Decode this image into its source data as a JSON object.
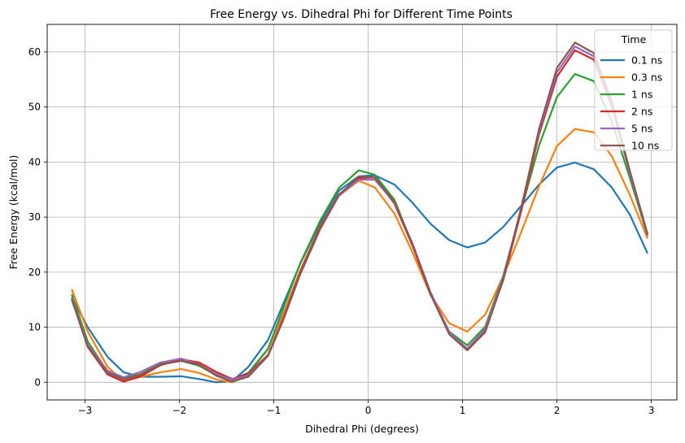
{
  "chart_data": {
    "type": "line",
    "title": "Free Energy vs. Dihedral Phi for Different Time Points",
    "xlabel": "Dihedral Phi (degrees)",
    "ylabel": "Free Energy (kcal/mol)",
    "xlim": [
      -3.4,
      3.27
    ],
    "ylim": [
      -3.2,
      65
    ],
    "xticks": [
      -3,
      -2,
      -1,
      0,
      1,
      2,
      3
    ],
    "xtick_labels": [
      "−3",
      "−2",
      "−1",
      "0",
      "1",
      "2",
      "3"
    ],
    "yticks": [
      0,
      10,
      20,
      30,
      40,
      50,
      60
    ],
    "ytick_labels": [
      "0",
      "10",
      "20",
      "30",
      "40",
      "50",
      "60"
    ],
    "grid": true,
    "legend": {
      "title": "Time",
      "position": "top-right"
    },
    "x": [
      -3.14,
      -2.97,
      -2.76,
      -2.59,
      -2.41,
      -2.2,
      -1.98,
      -1.79,
      -1.61,
      -1.44,
      -1.27,
      -1.06,
      -0.9,
      -0.72,
      -0.51,
      -0.31,
      -0.1,
      0.07,
      0.28,
      0.47,
      0.66,
      0.86,
      1.05,
      1.24,
      1.43,
      1.62,
      1.81,
      2.0,
      2.19,
      2.39,
      2.58,
      2.77,
      2.96
    ],
    "series": [
      {
        "name": "0.1 ns",
        "color": "#1f77b4",
        "values": [
          15.5,
          10,
          4.6,
          1.8,
          1.0,
          1.0,
          1.1,
          0.6,
          0,
          0.2,
          2.8,
          7.7,
          14.2,
          21.5,
          28.8,
          34.8,
          37.4,
          37.6,
          35.9,
          32.6,
          28.8,
          25.8,
          24.5,
          25.4,
          28.2,
          32.0,
          35.9,
          39.0,
          39.9,
          38.7,
          35.4,
          30.5,
          23.4
        ]
      },
      {
        "name": "0.3 ns",
        "color": "#ff7f0e",
        "values": [
          16.9,
          9.2,
          2.8,
          0.2,
          1.0,
          1.8,
          2.4,
          1.7,
          0.5,
          0,
          1.6,
          6.0,
          12.4,
          20.3,
          28.2,
          33.9,
          36.6,
          35.4,
          30.6,
          23.6,
          15.9,
          10.7,
          9.2,
          12.3,
          19.2,
          27.2,
          35.6,
          42.9,
          46.0,
          45.4,
          41.1,
          34.1,
          26.1
        ]
      },
      {
        "name": "1 ns",
        "color": "#2ca02c",
        "values": [
          16.0,
          7.4,
          1.9,
          0.8,
          1.5,
          3.3,
          3.9,
          3.0,
          1.3,
          0.5,
          1.7,
          6.1,
          13.4,
          21.6,
          29.3,
          35.3,
          38.5,
          37.7,
          33.1,
          24.9,
          16.1,
          9.2,
          6.7,
          10.1,
          19.3,
          31.2,
          43.0,
          51.8,
          56.0,
          54.7,
          47.4,
          37.2,
          26.6
        ]
      },
      {
        "name": "2 ns",
        "color": "#d62728",
        "values": [
          15.1,
          6.4,
          1.4,
          0.1,
          1.1,
          3.1,
          4.2,
          3.6,
          1.9,
          0.6,
          1.6,
          5.0,
          11.6,
          20.0,
          28.1,
          34.1,
          37.1,
          37.2,
          32.4,
          24.8,
          16.0,
          8.8,
          6.0,
          9.4,
          18.5,
          31.0,
          45.0,
          55.5,
          60.3,
          58.6,
          50.2,
          38.2,
          26.8
        ]
      },
      {
        "name": "5 ns",
        "color": "#9467bd",
        "values": [
          15.3,
          6.8,
          2.1,
          0.9,
          1.9,
          3.6,
          4.3,
          3.2,
          1.5,
          0.5,
          1.3,
          4.9,
          11.4,
          19.7,
          27.8,
          33.9,
          36.8,
          36.8,
          32.6,
          25.2,
          16.4,
          9.1,
          6.1,
          9.7,
          19.0,
          31.6,
          45.5,
          56.3,
          61.0,
          59.2,
          50.5,
          38.0,
          26.7
        ]
      },
      {
        "name": "10 ns",
        "color": "#8c564b",
        "values": [
          15.0,
          6.5,
          1.7,
          0.5,
          1.4,
          3.2,
          3.9,
          3.2,
          1.2,
          0.1,
          1.0,
          4.8,
          11.3,
          19.6,
          27.8,
          34.0,
          37.4,
          37.2,
          32.7,
          25.0,
          16.1,
          8.7,
          5.8,
          9.1,
          18.6,
          31.6,
          46.0,
          57.1,
          61.7,
          59.8,
          51.0,
          38.5,
          26.9
        ]
      }
    ]
  }
}
